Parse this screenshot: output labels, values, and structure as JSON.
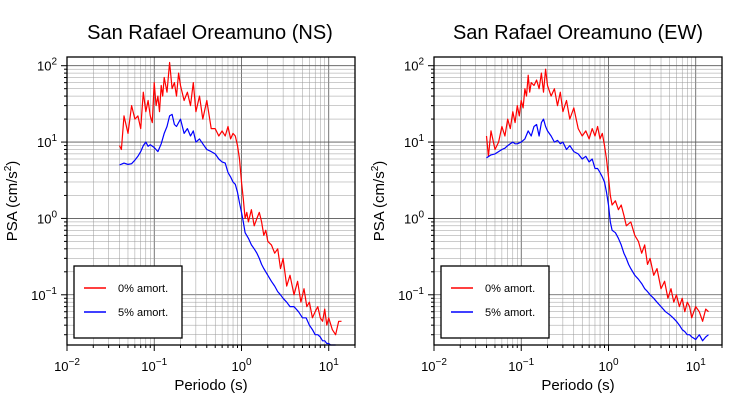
{
  "chart_data": [
    {
      "type": "line",
      "title": "San Rafael Oreamuno (NS)",
      "xlabel": "Periodo (s)",
      "ylabel": "PSA (cm/s2)",
      "xscale": "log",
      "yscale": "log",
      "xlim": [
        0.01,
        20
      ],
      "ylim": [
        0.022,
        130
      ],
      "xticks": [
        {
          "base": "10",
          "exp": "−2"
        },
        {
          "base": "10",
          "exp": "−1"
        },
        {
          "base": "10",
          "exp": "0"
        },
        {
          "base": "10",
          "exp": "1"
        }
      ],
      "yticks": [
        {
          "base": "10",
          "exp": "−1"
        },
        {
          "base": "10",
          "exp": "0"
        },
        {
          "base": "10",
          "exp": "1"
        },
        {
          "base": "10",
          "exp": "2"
        }
      ],
      "grid": true,
      "legend_position": "bottom-left",
      "series": [
        {
          "name": "0% amort.",
          "color": "#ff0000",
          "x": [
            0.04,
            0.042,
            0.045,
            0.05,
            0.055,
            0.06,
            0.065,
            0.07,
            0.075,
            0.08,
            0.085,
            0.09,
            0.095,
            0.1,
            0.105,
            0.11,
            0.115,
            0.12,
            0.125,
            0.13,
            0.14,
            0.15,
            0.16,
            0.17,
            0.18,
            0.19,
            0.2,
            0.22,
            0.24,
            0.26,
            0.28,
            0.3,
            0.33,
            0.36,
            0.4,
            0.45,
            0.5,
            0.55,
            0.6,
            0.65,
            0.7,
            0.75,
            0.8,
            0.85,
            0.9,
            0.95,
            1.0,
            1.05,
            1.1,
            1.15,
            1.2,
            1.3,
            1.4,
            1.5,
            1.6,
            1.7,
            1.8,
            1.9,
            2.0,
            2.2,
            2.4,
            2.6,
            2.8,
            3.0,
            3.3,
            3.6,
            4.0,
            4.4,
            4.8,
            5.2,
            5.6,
            6.0,
            6.5,
            7.0,
            7.5,
            8.0,
            8.5,
            9.0,
            9.5,
            10.0,
            11.0,
            12.0,
            13.0,
            14.0
          ],
          "y": [
            9.0,
            8.0,
            22.0,
            13.0,
            30.0,
            20.0,
            22.0,
            15.0,
            45.0,
            25.0,
            35.0,
            22.0,
            18.0,
            60.0,
            30.0,
            40.0,
            25.0,
            55.0,
            40.0,
            70.0,
            45.0,
            110.0,
            50.0,
            60.0,
            40.0,
            80.0,
            55.0,
            35.0,
            45.0,
            30.0,
            60.0,
            25.0,
            40.0,
            20.0,
            35.0,
            15.0,
            15.0,
            12.0,
            14.0,
            12.0,
            16.0,
            11.0,
            13.0,
            12.0,
            9.0,
            6.0,
            3.0,
            1.8,
            1.0,
            1.2,
            0.9,
            1.3,
            0.8,
            1.0,
            1.2,
            0.9,
            0.6,
            0.7,
            0.5,
            0.45,
            0.35,
            0.4,
            0.22,
            0.3,
            0.13,
            0.18,
            0.1,
            0.15,
            0.08,
            0.12,
            0.07,
            0.08,
            0.05,
            0.06,
            0.07,
            0.05,
            0.045,
            0.065,
            0.04,
            0.05,
            0.035,
            0.03,
            0.045,
            0.045
          ]
        },
        {
          "name": "5% amort.",
          "color": "#0000ff",
          "x": [
            0.04,
            0.045,
            0.05,
            0.055,
            0.06,
            0.065,
            0.07,
            0.075,
            0.08,
            0.085,
            0.09,
            0.1,
            0.11,
            0.12,
            0.13,
            0.14,
            0.15,
            0.16,
            0.17,
            0.18,
            0.19,
            0.2,
            0.22,
            0.24,
            0.26,
            0.28,
            0.3,
            0.33,
            0.36,
            0.4,
            0.45,
            0.5,
            0.55,
            0.6,
            0.65,
            0.7,
            0.75,
            0.8,
            0.85,
            0.9,
            0.95,
            1.0,
            1.05,
            1.1,
            1.2,
            1.3,
            1.4,
            1.5,
            1.6,
            1.7,
            1.8,
            2.0,
            2.2,
            2.4,
            2.6,
            2.8,
            3.0,
            3.3,
            3.6,
            4.0,
            4.5,
            5.0,
            5.5,
            6.0,
            6.5,
            7.0,
            7.5,
            8.0,
            8.5,
            9.0,
            9.5,
            10.0,
            10.5,
            11.0,
            12.0
          ],
          "y": [
            5.0,
            5.3,
            5.1,
            5.2,
            5.8,
            6.5,
            7.5,
            9.0,
            10.0,
            8.8,
            9.2,
            8.5,
            7.5,
            9.5,
            13.0,
            16.0,
            22.0,
            23.0,
            17.0,
            16.0,
            18.0,
            20.0,
            13.0,
            15.0,
            12.0,
            14.0,
            10.0,
            11.0,
            9.5,
            8.0,
            7.5,
            7.0,
            6.0,
            5.5,
            5.3,
            4.0,
            3.5,
            3.0,
            2.8,
            2.2,
            1.6,
            1.2,
            0.9,
            0.65,
            0.55,
            0.45,
            0.4,
            0.35,
            0.3,
            0.25,
            0.22,
            0.18,
            0.15,
            0.13,
            0.11,
            0.1,
            0.09,
            0.08,
            0.07,
            0.07,
            0.06,
            0.05,
            0.05,
            0.04,
            0.035,
            0.03,
            0.03,
            0.028,
            0.025,
            0.025,
            0.023,
            0.023,
            0.022,
            0.022,
            0.022
          ]
        }
      ]
    },
    {
      "type": "line",
      "title": "San Rafael Oreamuno (EW)",
      "xlabel": "Periodo (s)",
      "ylabel": "PSA (cm/s2)",
      "xscale": "log",
      "yscale": "log",
      "xlim": [
        0.01,
        20
      ],
      "ylim": [
        0.022,
        130
      ],
      "xticks": [
        {
          "base": "10",
          "exp": "−2"
        },
        {
          "base": "10",
          "exp": "−1"
        },
        {
          "base": "10",
          "exp": "0"
        },
        {
          "base": "10",
          "exp": "1"
        }
      ],
      "yticks": [
        {
          "base": "10",
          "exp": "−1"
        },
        {
          "base": "10",
          "exp": "0"
        },
        {
          "base": "10",
          "exp": "1"
        },
        {
          "base": "10",
          "exp": "2"
        }
      ],
      "grid": true,
      "legend_position": "bottom-left",
      "series": [
        {
          "name": "0% amort.",
          "color": "#ff0000",
          "x": [
            0.04,
            0.042,
            0.045,
            0.05,
            0.055,
            0.06,
            0.065,
            0.07,
            0.075,
            0.08,
            0.085,
            0.09,
            0.095,
            0.1,
            0.105,
            0.11,
            0.115,
            0.12,
            0.125,
            0.13,
            0.14,
            0.15,
            0.16,
            0.17,
            0.18,
            0.19,
            0.2,
            0.22,
            0.24,
            0.26,
            0.28,
            0.3,
            0.33,
            0.36,
            0.4,
            0.45,
            0.5,
            0.55,
            0.6,
            0.65,
            0.7,
            0.75,
            0.8,
            0.85,
            0.9,
            0.95,
            1.0,
            1.05,
            1.1,
            1.2,
            1.3,
            1.4,
            1.5,
            1.6,
            1.8,
            2.0,
            2.2,
            2.4,
            2.6,
            2.8,
            3.0,
            3.3,
            3.6,
            4.0,
            4.4,
            4.8,
            5.2,
            5.6,
            6.0,
            6.5,
            7.0,
            7.5,
            8.0,
            8.5,
            9.0,
            9.5,
            10.0,
            11.0,
            12.0,
            13.0,
            14.0
          ],
          "y": [
            12.0,
            6.5,
            14.0,
            8.0,
            10.0,
            16.0,
            12.0,
            20.0,
            15.0,
            25.0,
            18.0,
            30.0,
            22.0,
            35.0,
            28.0,
            50.0,
            40.0,
            75.0,
            45.0,
            60.0,
            55.0,
            65.0,
            50.0,
            80.0,
            45.0,
            90.0,
            55.0,
            40.0,
            50.0,
            30.0,
            45.0,
            25.0,
            35.0,
            20.0,
            28.0,
            15.0,
            12.0,
            14.0,
            11.0,
            15.0,
            12.0,
            16.0,
            11.0,
            13.0,
            9.0,
            6.0,
            3.5,
            2.0,
            1.5,
            1.7,
            1.3,
            1.5,
            1.1,
            0.8,
            0.9,
            0.6,
            0.5,
            0.35,
            0.45,
            0.25,
            0.3,
            0.18,
            0.22,
            0.12,
            0.15,
            0.09,
            0.12,
            0.08,
            0.1,
            0.07,
            0.09,
            0.06,
            0.08,
            0.07,
            0.05,
            0.06,
            0.07,
            0.06,
            0.045,
            0.065,
            0.06
          ]
        },
        {
          "name": "5% amort.",
          "color": "#0000ff",
          "x": [
            0.04,
            0.045,
            0.05,
            0.055,
            0.06,
            0.065,
            0.07,
            0.075,
            0.08,
            0.085,
            0.09,
            0.1,
            0.11,
            0.12,
            0.13,
            0.14,
            0.15,
            0.16,
            0.17,
            0.18,
            0.19,
            0.2,
            0.22,
            0.24,
            0.26,
            0.28,
            0.3,
            0.33,
            0.36,
            0.4,
            0.45,
            0.5,
            0.55,
            0.6,
            0.65,
            0.7,
            0.75,
            0.8,
            0.85,
            0.9,
            0.95,
            1.0,
            1.05,
            1.1,
            1.2,
            1.3,
            1.4,
            1.5,
            1.6,
            1.7,
            1.8,
            2.0,
            2.2,
            2.4,
            2.6,
            2.8,
            3.0,
            3.3,
            3.6,
            4.0,
            4.5,
            5.0,
            5.5,
            6.0,
            6.5,
            7.0,
            7.5,
            8.0,
            8.5,
            9.0,
            9.5,
            10.0,
            11.0,
            12.0,
            13.0,
            14.0
          ],
          "y": [
            6.2,
            6.8,
            7.0,
            7.5,
            8.0,
            8.3,
            9.0,
            9.5,
            10.0,
            9.5,
            9.5,
            10.0,
            11.0,
            14.0,
            12.0,
            16.0,
            17.0,
            12.0,
            18.0,
            20.0,
            16.0,
            14.0,
            12.0,
            10.0,
            10.5,
            9.5,
            10.0,
            8.0,
            9.0,
            7.5,
            7.0,
            6.0,
            6.5,
            5.5,
            6.0,
            4.5,
            4.5,
            4.0,
            3.5,
            3.0,
            2.2,
            1.5,
            0.9,
            0.7,
            0.65,
            0.55,
            0.45,
            0.35,
            0.3,
            0.25,
            0.22,
            0.18,
            0.16,
            0.14,
            0.12,
            0.11,
            0.1,
            0.09,
            0.08,
            0.07,
            0.06,
            0.055,
            0.05,
            0.045,
            0.04,
            0.035,
            0.033,
            0.03,
            0.03,
            0.028,
            0.027,
            0.026,
            0.03,
            0.025,
            0.028,
            0.03
          ]
        }
      ]
    }
  ]
}
